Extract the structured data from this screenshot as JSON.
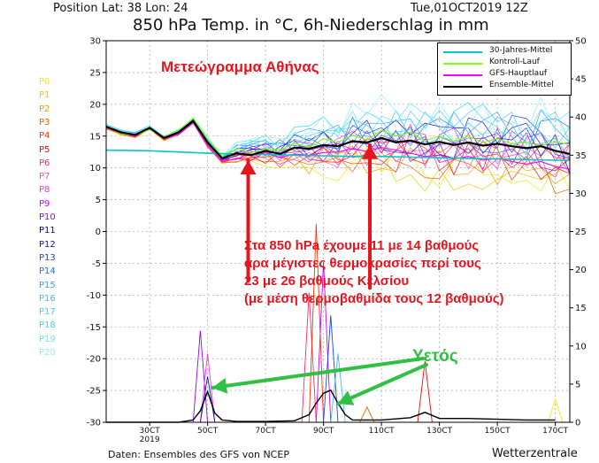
{
  "header": {
    "position": "Position   Lat: 38 Lon: 24",
    "date": "Tue,01OCT2019  12Z",
    "title": "850 hPa Temp. in °C, 6h-Niederschlag in mm",
    "footer": "Daten: Ensembles des GFS von NCEP",
    "brand": "Wetterzentrale"
  },
  "members": [
    {
      "label": "P0",
      "color": "#eeee00"
    },
    {
      "label": "P1",
      "color": "#e6cc00"
    },
    {
      "label": "P2",
      "color": "#f0a000"
    },
    {
      "label": "P3",
      "color": "#f06000"
    },
    {
      "label": "P4",
      "color": "#ff3000"
    },
    {
      "label": "P5",
      "color": "#ff0000"
    },
    {
      "label": "P6",
      "color": "#ff2a6a"
    },
    {
      "label": "P7",
      "color": "#ff48b0"
    },
    {
      "label": "P8",
      "color": "#ff30e0"
    },
    {
      "label": "P9",
      "color": "#d000ff"
    },
    {
      "label": "P10",
      "color": "#9a00ff"
    },
    {
      "label": "P11",
      "color": "#0000b0"
    },
    {
      "label": "P12",
      "color": "#1010d0"
    },
    {
      "label": "P13",
      "color": "#2040f0"
    },
    {
      "label": "P14",
      "color": "#2070ff"
    },
    {
      "label": "P15",
      "color": "#30a0ff"
    },
    {
      "label": "P16",
      "color": "#40b8ff"
    },
    {
      "label": "P17",
      "color": "#40d0ff"
    },
    {
      "label": "P18",
      "color": "#30d8e8"
    },
    {
      "label": "P19",
      "color": "#60e8f0"
    },
    {
      "label": "P20",
      "color": "#90f0ff"
    }
  ],
  "annotations": {
    "title": "Μετεώγραμμα Αθήνας",
    "text_lines": [
      "Στα 850 hPa έχουμε 11 με 14 βαθμούς",
      "άρα μέγιστες θερμοκρασίες περί τους",
      "23 με 26 βαθμούς Κελσίου",
      "(με μέση θερμοβαθμίδα τους 12 βαθμούς)"
    ],
    "rain_label": "Υετός"
  },
  "chart_data": {
    "type": "line",
    "title": "850 hPa Temp. in °C, 6h-Niederschlag in mm",
    "x_tick_labels": [
      "30CT\n2019",
      "50CT",
      "70CT",
      "90CT",
      "110CT",
      "130CT",
      "150CT",
      "170CT"
    ],
    "x_tick_days": [
      3,
      5,
      7,
      9,
      11,
      13,
      15,
      17
    ],
    "x_range_days": [
      1.5,
      17.5
    ],
    "y_left": {
      "label": "850 hPa Temp. in °C",
      "range": [
        -30,
        30
      ],
      "ticks": [
        30,
        25,
        20,
        15,
        10,
        5,
        0,
        -5,
        -10,
        -15,
        -20,
        -25,
        -30
      ]
    },
    "y_right": {
      "label": "6h-Niederschlag in mm",
      "range": [
        0,
        50
      ],
      "ticks": [
        50,
        45,
        40,
        35,
        30,
        25,
        20,
        15,
        10,
        5,
        0
      ]
    },
    "grid": "dashed",
    "legend_position": "top-right",
    "legend": [
      {
        "name": "30-Jahres-Mittel",
        "color": "#00c8c8"
      },
      {
        "name": "Kontroll-Lauf",
        "color": "#7fff00"
      },
      {
        "name": "GFS-Hauptlauf",
        "color": "#ff00ff"
      },
      {
        "name": "Ensemble-Mittel",
        "color": "#000000"
      }
    ],
    "series": [
      {
        "name": "30-Jahres-Mittel",
        "color": "#00c8c8",
        "x": [
          1.5,
          3,
          4,
          5,
          6,
          7,
          8,
          9,
          10,
          11,
          12,
          13,
          14,
          15,
          16,
          17,
          17.5
        ],
        "y": [
          12.8,
          12.7,
          12.5,
          12.3,
          12.2,
          12.1,
          12.0,
          11.9,
          11.8,
          11.8,
          11.7,
          11.6,
          11.5,
          11.4,
          11.3,
          11.2,
          11.2
        ]
      },
      {
        "name": "Ensemble-Mittel",
        "color": "#000000",
        "x": [
          1.5,
          2,
          2.5,
          3,
          3.5,
          4,
          4.5,
          5,
          5.5,
          6,
          6.5,
          7,
          7.5,
          8,
          8.5,
          9,
          9.5,
          10,
          10.5,
          11,
          11.5,
          12,
          12.5,
          13,
          13.5,
          14,
          14.5,
          15,
          15.5,
          16,
          16.5,
          17,
          17.5
        ],
        "y": [
          16.5,
          15.6,
          15.2,
          16.3,
          14.7,
          15.6,
          17.4,
          14.0,
          11.5,
          12.3,
          12.0,
          12.7,
          12.2,
          13.2,
          13.0,
          13.6,
          13.4,
          14.2,
          14.0,
          14.7,
          14.0,
          14.3,
          13.7,
          14.1,
          13.6,
          14.0,
          13.5,
          13.8,
          13.4,
          13.1,
          13.4,
          12.7,
          12.2
        ]
      },
      {
        "name": "Kontroll-Lauf",
        "color": "#7fff00",
        "x": [
          1.5,
          2,
          2.5,
          3,
          3.5,
          4,
          4.5,
          5,
          5.5,
          6,
          6.5,
          7,
          7.5,
          8,
          8.5,
          9,
          9.5,
          10,
          10.5,
          11,
          11.5,
          12,
          12.5,
          13,
          13.5,
          14,
          14.5,
          15,
          15.5,
          16,
          16.5,
          17,
          17.5
        ],
        "y": [
          16.6,
          15.4,
          15.1,
          16.0,
          14.9,
          15.9,
          17.8,
          14.6,
          11.9,
          13.0,
          12.4,
          13.0,
          12.8,
          13.9,
          13.2,
          14.6,
          14.0,
          15.1,
          14.4,
          15.9,
          15.0,
          15.6,
          14.3,
          15.0,
          14.2,
          15.0,
          14.0,
          14.6,
          13.8,
          14.0,
          13.5,
          14.2,
          13.6
        ]
      },
      {
        "name": "GFS-Hauptlauf",
        "color": "#ff00ff",
        "x": [
          1.5,
          2,
          2.5,
          3,
          3.5,
          4,
          4.5,
          5,
          5.5,
          6,
          6.5,
          7,
          7.5,
          8,
          8.5,
          9,
          9.5,
          10,
          10.5,
          11,
          11.5,
          12,
          12.5,
          13,
          13.5,
          14,
          14.5,
          15,
          15.5,
          16,
          16.5,
          17,
          17.5
        ],
        "y": [
          16.4,
          15.7,
          15.0,
          16.4,
          14.5,
          15.3,
          17.1,
          13.5,
          11.0,
          11.5,
          11.2,
          12.5,
          11.6,
          12.2,
          12.0,
          12.4,
          12.5,
          13.0,
          12.6,
          13.2,
          12.8,
          12.3,
          11.8,
          12.0,
          11.4,
          11.8,
          11.2,
          11.5,
          11.0,
          10.6,
          11.0,
          10.2,
          9.8
        ]
      }
    ],
    "precip_mean": {
      "name": "Ensemble-Mittel Niederschlag (mm)",
      "x": [
        1.5,
        3,
        4,
        4.5,
        4.75,
        5,
        5.25,
        5.5,
        6,
        7,
        8,
        8.5,
        8.75,
        9,
        9.25,
        9.5,
        9.75,
        10,
        11,
        12,
        12.5,
        13,
        14,
        15,
        16,
        17
      ],
      "y": [
        0,
        0,
        0,
        0.3,
        1.5,
        4.0,
        1.2,
        0.3,
        0.1,
        0.1,
        0.2,
        1.0,
        2.5,
        3.8,
        4.2,
        2.5,
        1.0,
        0.3,
        0.3,
        0.6,
        1.3,
        0.5,
        0.5,
        0.4,
        0.3,
        0.3
      ]
    },
    "precip_member_peaks": [
      {
        "x": 4.75,
        "y": 12.0,
        "member": "P10"
      },
      {
        "x": 5.0,
        "y": 9.0,
        "member": "P8"
      },
      {
        "x": 5.0,
        "y": 6.0,
        "member": "P12"
      },
      {
        "x": 8.5,
        "y": 17.0,
        "member": "P6"
      },
      {
        "x": 8.75,
        "y": 26.0,
        "member": "P4"
      },
      {
        "x": 9.0,
        "y": 21.0,
        "member": "P9"
      },
      {
        "x": 9.25,
        "y": 14.0,
        "member": "P13"
      },
      {
        "x": 9.5,
        "y": 9.0,
        "member": "P16"
      },
      {
        "x": 12.5,
        "y": 8.0,
        "member": "P5"
      },
      {
        "x": 10.5,
        "y": 2.0,
        "member": "P3"
      },
      {
        "x": 17.0,
        "y": 3.0,
        "member": "P0"
      }
    ]
  }
}
